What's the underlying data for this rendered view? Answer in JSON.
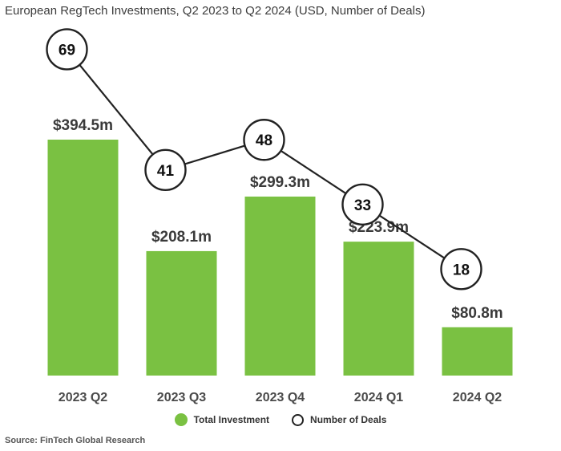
{
  "chart_data": {
    "type": "bar",
    "title": "European RegTech Investments, Q2 2023 to Q2 2024 (USD, Number of Deals)",
    "categories": [
      "2023 Q2",
      "2023 Q3",
      "2023 Q4",
      "2024 Q1",
      "2024 Q2"
    ],
    "series": [
      {
        "name": "Total Investment",
        "type": "bar",
        "values": [
          394.5,
          208.1,
          299.3,
          223.9,
          80.8
        ],
        "labels": [
          "$394.5m",
          "$208.1m",
          "$299.3m",
          "$223.9m",
          "$80.8m"
        ],
        "color": "#7ac142"
      },
      {
        "name": "Number of Deals",
        "type": "line",
        "values": [
          69,
          41,
          48,
          33,
          18
        ],
        "labels": [
          "69",
          "41",
          "48",
          "33",
          "18"
        ],
        "color": "#222222"
      }
    ],
    "legend": "bottom",
    "grid": false,
    "source": "Source: FinTech Global Research"
  }
}
